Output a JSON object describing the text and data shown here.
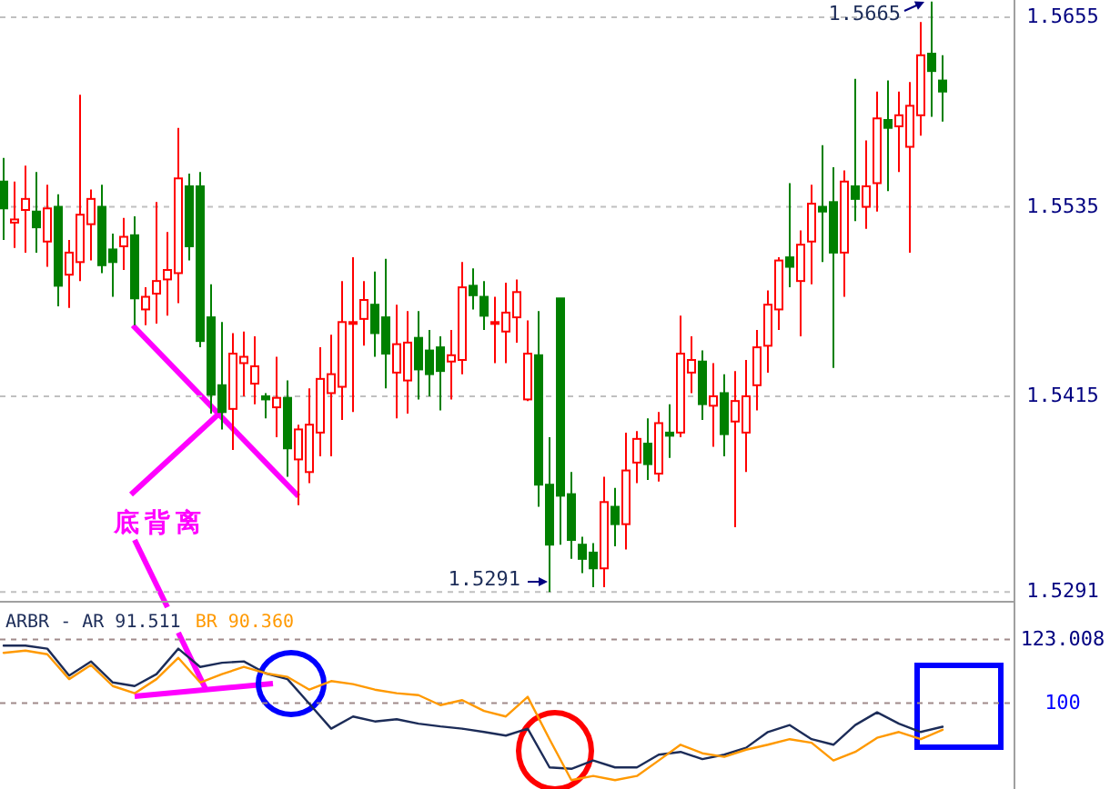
{
  "chart_data": [
    {
      "type": "candlestick",
      "categories": [
        null,
        null,
        null,
        null,
        null,
        null,
        null,
        null,
        null,
        null,
        null,
        null,
        null,
        null,
        null,
        null,
        null,
        null,
        null,
        null,
        null,
        null,
        null,
        null,
        null,
        null,
        null,
        null,
        null,
        null,
        null,
        null,
        null,
        null,
        null,
        null,
        null,
        null,
        null,
        null,
        null,
        null,
        null,
        null,
        null,
        null,
        null,
        null,
        null,
        null,
        null,
        null,
        null,
        null,
        null,
        null,
        null,
        null,
        null,
        null,
        null,
        null,
        null,
        null,
        null,
        null,
        null,
        null,
        null,
        null,
        null,
        null,
        null,
        null,
        null,
        null,
        null,
        null,
        null,
        null,
        null,
        null,
        null,
        null,
        null,
        null,
        null
      ],
      "ohlc": [
        [
          1.5551,
          1.5566,
          1.5514,
          1.5534
        ],
        [
          1.5525,
          1.5551,
          1.5509,
          1.5527
        ],
        [
          1.5533,
          1.5561,
          1.5506,
          1.554
        ],
        [
          1.5532,
          1.5557,
          1.5506,
          1.5522
        ],
        [
          1.5513,
          1.5549,
          1.5497,
          1.5534
        ],
        [
          1.5535,
          1.5543,
          1.5472,
          1.5485
        ],
        [
          1.5492,
          1.5514,
          1.5471,
          1.5506
        ],
        [
          1.55,
          1.5606,
          1.5488,
          1.553
        ],
        [
          1.5524,
          1.5546,
          1.5501,
          1.554
        ],
        [
          1.5535,
          1.5549,
          1.5493,
          1.5498
        ],
        [
          1.5508,
          1.5518,
          1.5478,
          1.55
        ],
        [
          1.551,
          1.5528,
          1.5495,
          1.5516
        ],
        [
          1.5517,
          1.5529,
          1.546,
          1.5477
        ],
        [
          1.547,
          1.5484,
          1.546,
          1.5478
        ],
        [
          1.548,
          1.5538,
          1.5461,
          1.5488
        ],
        [
          1.5489,
          1.5519,
          1.5466,
          1.5495
        ],
        [
          1.5493,
          1.5585,
          1.5474,
          1.5553
        ],
        [
          1.5548,
          1.5556,
          1.5501,
          1.551
        ],
        [
          1.5548,
          1.5557,
          1.5446,
          1.545
        ],
        [
          1.5465,
          1.5486,
          1.5404,
          1.5416
        ],
        [
          1.5422,
          1.5462,
          1.5394,
          1.5405
        ],
        [
          1.5407,
          1.5455,
          1.5381,
          1.5442
        ],
        [
          1.5436,
          1.5456,
          1.5415,
          1.544
        ],
        [
          1.5423,
          1.5453,
          1.541,
          1.5434
        ],
        [
          1.5415,
          1.5417,
          1.5401,
          1.5413
        ],
        [
          1.5408,
          1.544,
          1.5389,
          1.5414
        ],
        [
          1.5414,
          1.5425,
          1.5364,
          1.5382
        ],
        [
          1.5375,
          1.5397,
          1.5346,
          1.5394
        ],
        [
          1.5367,
          1.542,
          1.536,
          1.5397
        ],
        [
          1.5392,
          1.5446,
          1.5377,
          1.5426
        ],
        [
          1.5417,
          1.5454,
          1.5377,
          1.5429
        ],
        [
          1.5421,
          1.5488,
          1.54,
          1.5462
        ],
        [
          1.5461,
          1.5503,
          1.5405,
          1.5462
        ],
        [
          1.5464,
          1.5488,
          1.5447,
          1.5476
        ],
        [
          1.5473,
          1.5494,
          1.544,
          1.5455
        ],
        [
          1.5465,
          1.5502,
          1.542,
          1.5442
        ],
        [
          1.543,
          1.5473,
          1.5401,
          1.5448
        ],
        [
          1.5425,
          1.5469,
          1.5404,
          1.5449
        ],
        [
          1.5452,
          1.5469,
          1.5413,
          1.5432
        ],
        [
          1.5444,
          1.5457,
          1.5415,
          1.5429
        ],
        [
          1.5446,
          1.5453,
          1.5406,
          1.5431
        ],
        [
          1.5437,
          1.5457,
          1.5413,
          1.5441
        ],
        [
          1.5438,
          1.55,
          1.5429,
          1.5484
        ],
        [
          1.5485,
          1.5496,
          1.547,
          1.5479
        ],
        [
          1.5478,
          1.5488,
          1.5457,
          1.5466
        ],
        [
          1.5462,
          1.5478,
          1.5436,
          1.5462
        ],
        [
          1.5456,
          1.5487,
          1.5436,
          1.5468
        ],
        [
          1.5465,
          1.5489,
          1.5449,
          1.5481
        ],
        [
          1.5413,
          1.5463,
          1.5412,
          1.5442
        ],
        [
          1.5441,
          1.5469,
          1.5345,
          1.5359
        ],
        [
          1.5359,
          1.5389,
          1.5291,
          1.5321
        ],
        [
          1.5477,
          1.5477,
          1.5321,
          1.5352
        ],
        [
          1.5353,
          1.5367,
          1.5312,
          1.5324
        ],
        [
          1.5321,
          1.5326,
          1.5303,
          1.5312
        ],
        [
          1.5316,
          1.5322,
          1.5294,
          1.5306
        ],
        [
          1.5306,
          1.5364,
          1.5294,
          1.5348
        ],
        [
          1.5345,
          1.5357,
          1.532,
          1.5334
        ],
        [
          1.5334,
          1.5392,
          1.5318,
          1.5368
        ],
        [
          1.5373,
          1.5393,
          1.536,
          1.5388
        ],
        [
          1.5385,
          1.5401,
          1.5362,
          1.5372
        ],
        [
          1.5366,
          1.5405,
          1.5361,
          1.5398
        ],
        [
          1.5392,
          1.541,
          1.5376,
          1.539
        ],
        [
          1.5392,
          1.5466,
          1.5389,
          1.5442
        ],
        [
          1.543,
          1.5453,
          1.5417,
          1.5438
        ],
        [
          1.5437,
          1.5444,
          1.54,
          1.541
        ],
        [
          1.5409,
          1.5436,
          1.5383,
          1.5415
        ],
        [
          1.5417,
          1.5429,
          1.5377,
          1.5391
        ],
        [
          1.5399,
          1.5431,
          1.5332,
          1.5412
        ],
        [
          1.5392,
          1.5438,
          1.5367,
          1.5415
        ],
        [
          1.5422,
          1.5457,
          1.5406,
          1.5446
        ],
        [
          1.5447,
          1.5482,
          1.543,
          1.5473
        ],
        [
          1.547,
          1.5503,
          1.5457,
          1.5501
        ],
        [
          1.5503,
          1.555,
          1.5484,
          1.5497
        ],
        [
          1.5488,
          1.552,
          1.5453,
          1.5511
        ],
        [
          1.5513,
          1.5549,
          1.5486,
          1.5537
        ],
        [
          1.5535,
          1.5574,
          1.55,
          1.5532
        ],
        [
          1.5538,
          1.556,
          1.5433,
          1.5506
        ],
        [
          1.5506,
          1.5558,
          1.5478,
          1.5551
        ],
        [
          1.5548,
          1.5616,
          1.5526,
          1.554
        ],
        [
          1.5535,
          1.5577,
          1.5521,
          1.5548
        ],
        [
          1.555,
          1.5608,
          1.5532,
          1.5591
        ],
        [
          1.559,
          1.5615,
          1.5545,
          1.5585
        ],
        [
          1.5586,
          1.5608,
          1.5557,
          1.5593
        ],
        [
          1.5573,
          1.5614,
          1.5506,
          1.5599
        ],
        [
          1.5593,
          1.5652,
          1.558,
          1.5631
        ],
        [
          1.5632,
          1.5665,
          1.5592,
          1.5621
        ],
        [
          1.5615,
          1.5631,
          1.5589,
          1.5608
        ]
      ],
      "colors": [
        "#008000",
        "#ff0000",
        "#ff0000",
        "#008000",
        "#ff0000",
        "#008000",
        "#ff0000",
        "#ff0000",
        "#ff0000",
        "#008000",
        "#008000",
        "#ff0000",
        "#008000",
        "#ff0000",
        "#ff0000",
        "#ff0000",
        "#ff0000",
        "#008000",
        "#008000",
        "#008000",
        "#008000",
        "#ff0000",
        "#ff0000",
        "#ff0000",
        "#008000",
        "#ff0000",
        "#008000",
        "#ff0000",
        "#ff0000",
        "#ff0000",
        "#ff0000",
        "#ff0000",
        "#ff0000",
        "#ff0000",
        "#008000",
        "#008000",
        "#ff0000",
        "#ff0000",
        "#008000",
        "#008000",
        "#008000",
        "#ff0000",
        "#ff0000",
        "#008000",
        "#008000",
        "#ff0000",
        "#ff0000",
        "#ff0000",
        "#ff0000",
        "#008000",
        "#008000",
        "#008000",
        "#008000",
        "#008000",
        "#008000",
        "#ff0000",
        "#008000",
        "#ff0000",
        "#ff0000",
        "#008000",
        "#ff0000",
        "#008000",
        "#ff0000",
        "#ff0000",
        "#008000",
        "#ff0000",
        "#008000",
        "#ff0000",
        "#ff0000",
        "#ff0000",
        "#ff0000",
        "#ff0000",
        "#008000",
        "#ff0000",
        "#ff0000",
        "#008000",
        "#008000",
        "#ff0000",
        "#008000",
        "#ff0000",
        "#ff0000",
        "#008000",
        "#ff0000",
        "#ff0000",
        "#ff0000",
        "#008000",
        "#008000"
      ],
      "ylim": [
        1.5286,
        1.5666
      ],
      "yticks": [
        1.5655,
        1.5535,
        1.5415,
        1.5291
      ],
      "grid": "y",
      "annotations": [
        "1.5665",
        "1.5291",
        "底背离"
      ]
    },
    {
      "type": "line",
      "title": "ARBR -",
      "categories": [
        null,
        null,
        null,
        null,
        null,
        null,
        null,
        null,
        null,
        null,
        null,
        null,
        null,
        null,
        null,
        null,
        null,
        null,
        null,
        null,
        null,
        null,
        null,
        null,
        null,
        null,
        null,
        null,
        null,
        null,
        null,
        null,
        null,
        null,
        null,
        null,
        null,
        null,
        null,
        null,
        null,
        null,
        null,
        null
      ],
      "series": [
        {
          "name": "AR 91.511",
          "color": "#1c2c58",
          "values": [
            120.8,
            120.8,
            119.7,
            110.0,
            115.1,
            107.5,
            106.2,
            110.5,
            119.7,
            113.1,
            114.6,
            115.1,
            110.8,
            108.7,
            99.8,
            90.8,
            95.2,
            93.4,
            94.2,
            92.6,
            91.6,
            90.8,
            89.6,
            88.3,
            90.8,
            76.8,
            76.3,
            79.3,
            76.8,
            76.8,
            81.4,
            82.4,
            79.8,
            81.4,
            83.9,
            89.6,
            92.1,
            87.0,
            85.0,
            92.1,
            96.7,
            92.6,
            89.6,
            91.5
          ]
        },
        {
          "name": "BR 90.360",
          "color": "#ff9900",
          "values": [
            118.2,
            119.0,
            117.7,
            108.7,
            113.8,
            106.2,
            103.6,
            108.7,
            116.4,
            107.5,
            110.5,
            113.1,
            110.8,
            109.5,
            104.9,
            108.0,
            106.9,
            104.9,
            103.6,
            102.9,
            99.3,
            101.1,
            97.2,
            95.2,
            102.3,
            87.0,
            72.2,
            73.7,
            72.2,
            73.7,
            79.3,
            85.0,
            81.9,
            80.6,
            83.2,
            85.0,
            87.0,
            85.7,
            79.3,
            82.4,
            87.5,
            89.6,
            87.0,
            90.4
          ]
        }
      ],
      "ylim": [
        69,
        136
      ],
      "yticks": [
        123.008,
        100
      ],
      "grid": "y",
      "legend": "top left"
    }
  ]
}
